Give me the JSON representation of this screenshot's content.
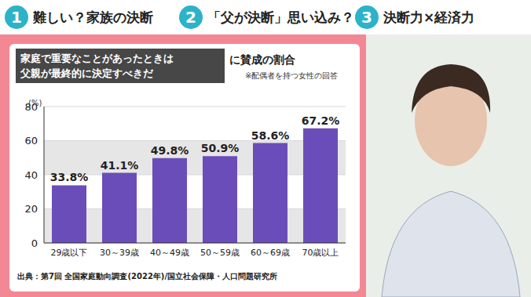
{
  "header": {
    "tabs": [
      {
        "number": "1",
        "text": "難しい？家族の決断"
      },
      {
        "number": "2",
        "text": "「父が決断」思い込み？"
      },
      {
        "number": "3",
        "text": "決断力×経済力"
      }
    ]
  },
  "chart_data": {
    "type": "bar",
    "title": [
      "家庭で重要なことがあったときは",
      "父親が最終的に決定すべきだ"
    ],
    "subtitle": "に賛成の割合",
    "annotations": [
      "※配偶者を持つ女性の回答"
    ],
    "source": "出典：第7回 全国家庭動向調査(2022年)/国立社会保障・人口問題研究所",
    "ylabel": "(%)",
    "categories": [
      "29歳以下",
      "30～39歳",
      "40～49歳",
      "50～59歳",
      "60～69歳",
      "70歳以上"
    ],
    "values": [
      33.8,
      41.1,
      49.8,
      50.9,
      58.6,
      67.2
    ],
    "value_labels": [
      "33.8%",
      "41.1%",
      "49.8%",
      "50.9%",
      "58.6%",
      "67.2%"
    ],
    "color": "#6a4db8",
    "ylim": [
      0,
      80
    ],
    "yticks": [
      0,
      20,
      40,
      60,
      80
    ],
    "grid": true,
    "data_labels": true
  }
}
